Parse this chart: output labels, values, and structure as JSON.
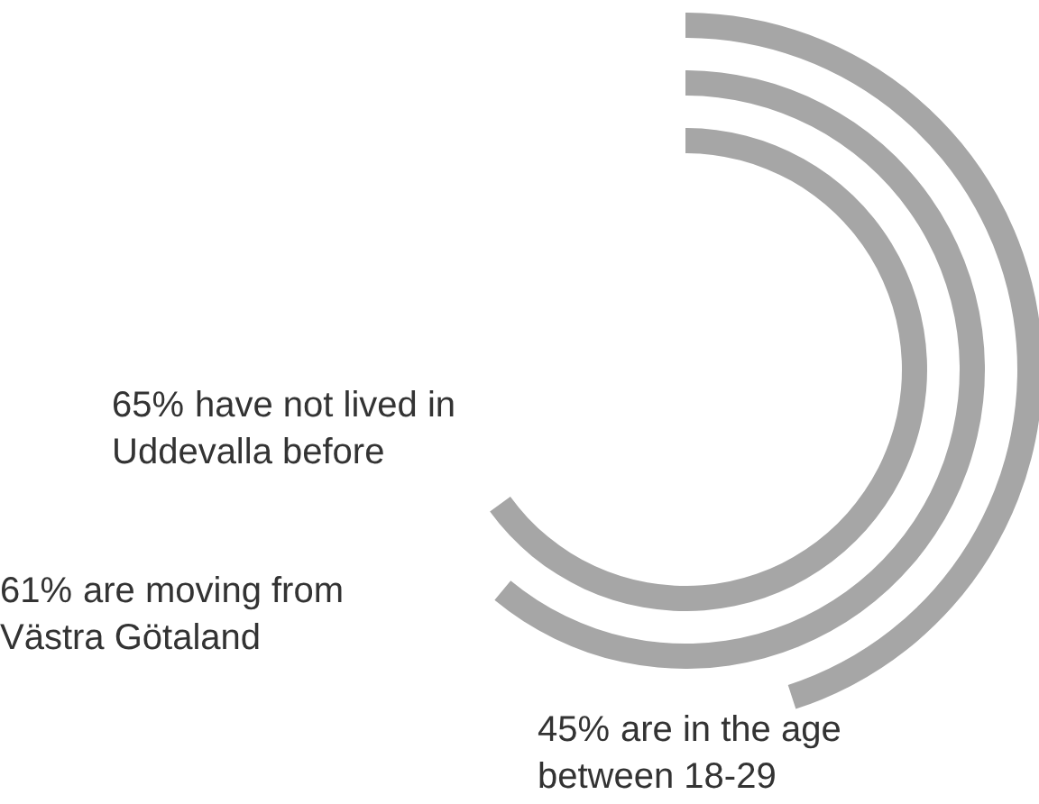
{
  "chart_data": {
    "type": "other",
    "categories": [
      "are in the age between 18-29",
      "are moving from Västra Götaland",
      "have not lived in Uddevalla before"
    ],
    "values": [
      45,
      61,
      65
    ],
    "value_labels": [
      "45%",
      "61%",
      "65%"
    ],
    "color": "#a6a6a6"
  }
}
